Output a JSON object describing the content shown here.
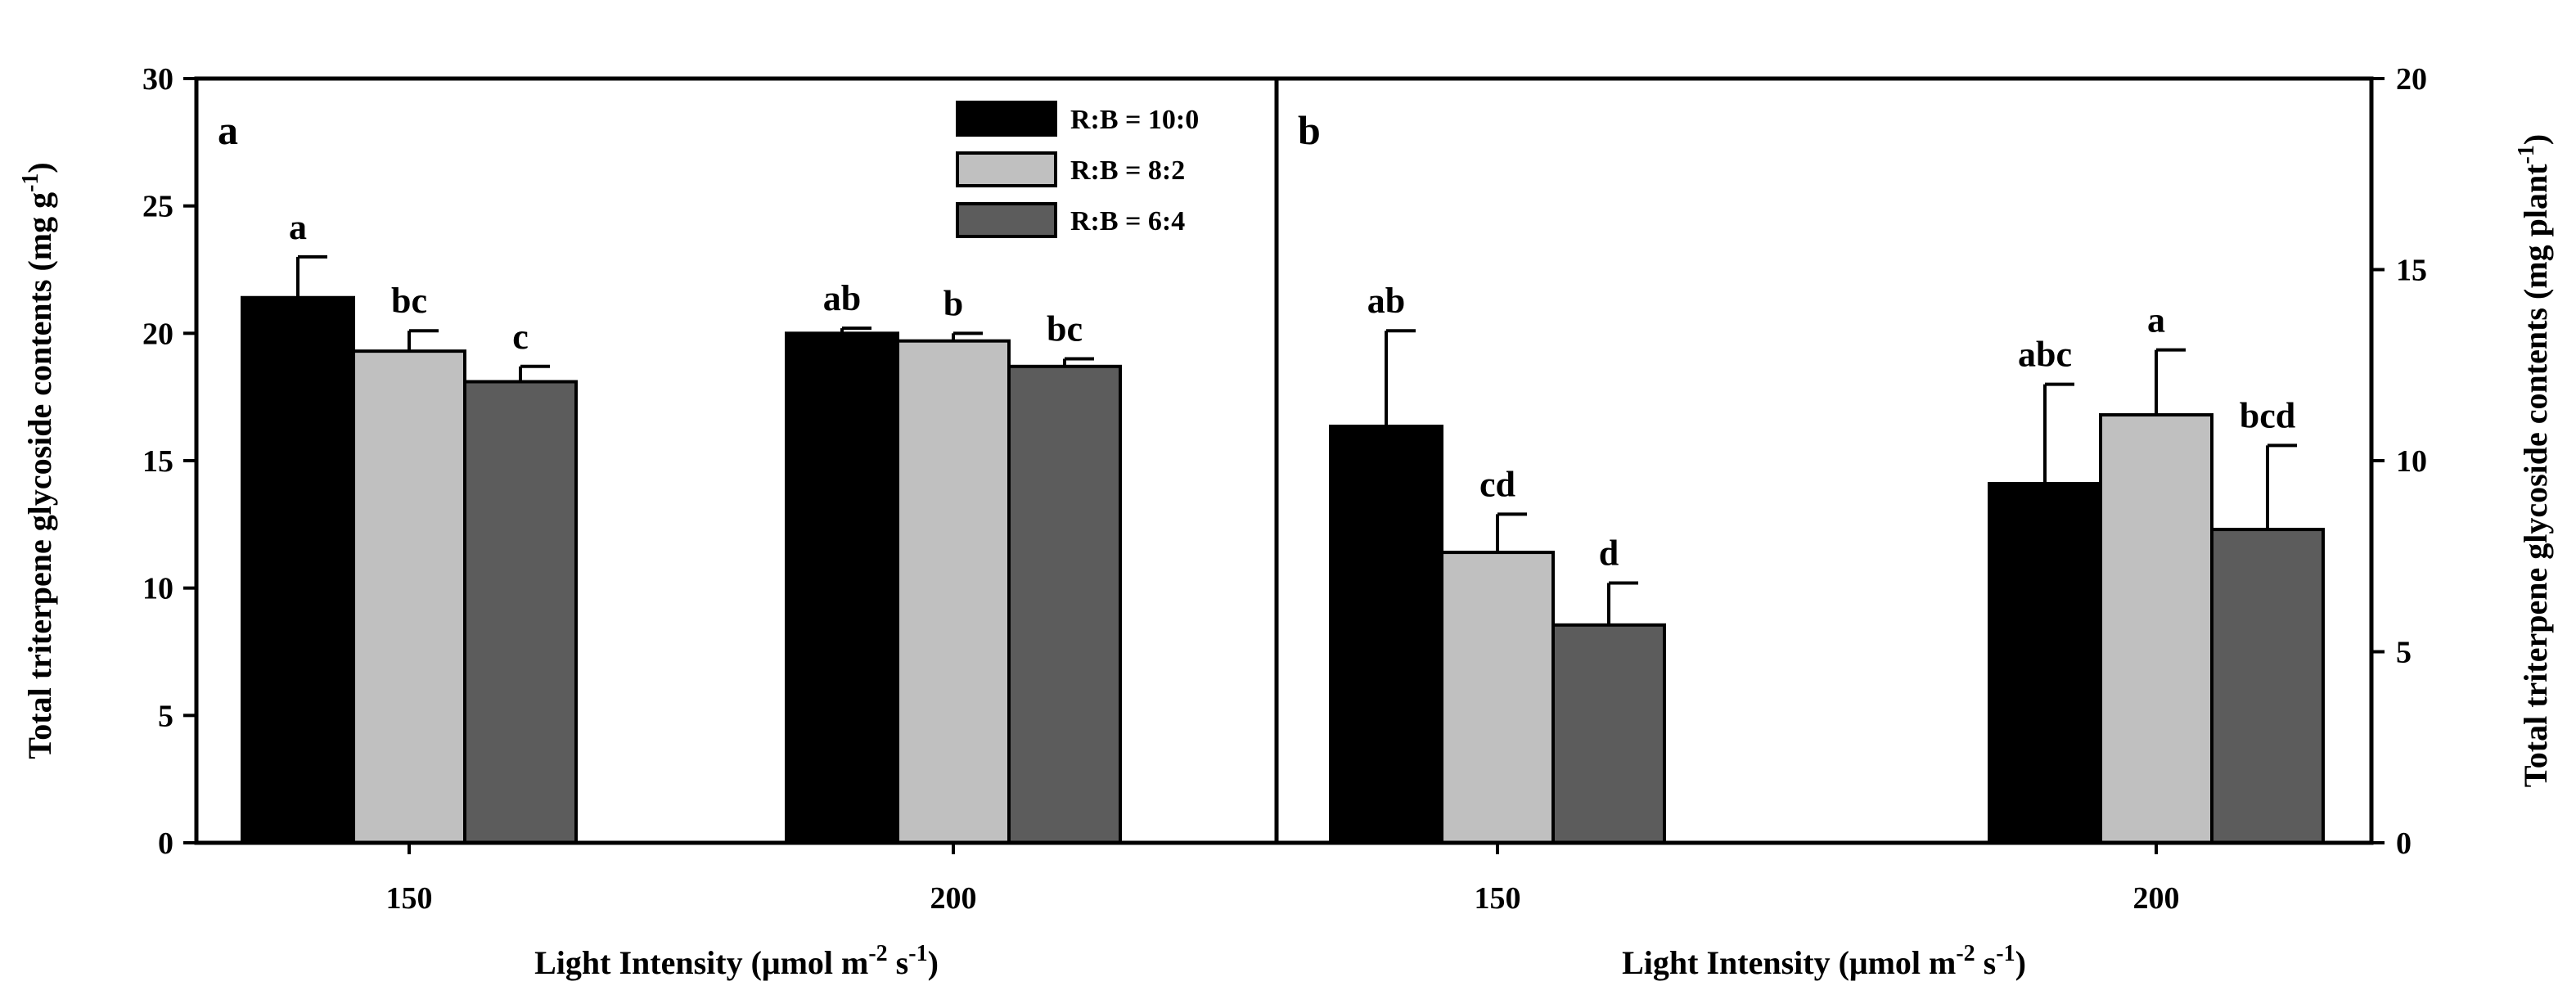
{
  "chart_data": [
    {
      "panel": "a",
      "type": "bar",
      "categories": [
        "150",
        "200"
      ],
      "ylim": [
        0,
        30
      ],
      "yticks": [
        0,
        5,
        10,
        15,
        20,
        25,
        30
      ],
      "ylabel": {
        "main": "Total triterpene glycoside contents (mg g",
        "sup": "-1",
        "close": ")"
      },
      "xlabel": {
        "main": "Light Intensity (μmol m",
        "sup1": "-2",
        "mid": " s",
        "sup2": "-1",
        "close": ")"
      },
      "series": [
        {
          "name": "R:B = 10:0",
          "color": "#000000",
          "values": [
            21.4,
            20.0
          ],
          "errors": [
            1.6,
            0.2
          ],
          "letters": [
            "a",
            "ab"
          ]
        },
        {
          "name": "R:B = 8:2",
          "color": "#c0c0c0",
          "values": [
            19.3,
            19.7
          ],
          "errors": [
            0.8,
            0.3
          ],
          "letters": [
            "bc",
            "b"
          ]
        },
        {
          "name": "R:B = 6:4",
          "color": "#5c5c5c",
          "values": [
            18.1,
            18.7
          ],
          "errors": [
            0.6,
            0.3
          ],
          "letters": [
            "c",
            "bc"
          ]
        }
      ],
      "legend": {
        "position": "top-right"
      }
    },
    {
      "panel": "b",
      "type": "bar",
      "categories": [
        "150",
        "200"
      ],
      "ylim": [
        0,
        20
      ],
      "yticks": [
        0,
        5,
        10,
        15,
        20
      ],
      "ylabel": {
        "main": "Total triterpene glycoside contents (mg plant",
        "sup": "-1",
        "close": ")"
      },
      "xlabel": {
        "main": "Light Intensity (μmol m",
        "sup1": "-2",
        "mid": " s",
        "sup2": "-1",
        "close": ")"
      },
      "series": [
        {
          "name": "R:B = 10:0",
          "color": "#000000",
          "values": [
            10.9,
            9.4
          ],
          "errors": [
            2.5,
            2.6
          ],
          "letters": [
            "ab",
            "abc"
          ]
        },
        {
          "name": "R:B = 8:2",
          "color": "#c0c0c0",
          "values": [
            7.6,
            11.2
          ],
          "errors": [
            1.0,
            1.7
          ],
          "letters": [
            "cd",
            "a"
          ]
        },
        {
          "name": "R:B = 6:4",
          "color": "#5c5c5c",
          "values": [
            5.7,
            8.2
          ],
          "errors": [
            1.1,
            2.2
          ],
          "letters": [
            "d",
            "bcd"
          ]
        }
      ]
    }
  ]
}
